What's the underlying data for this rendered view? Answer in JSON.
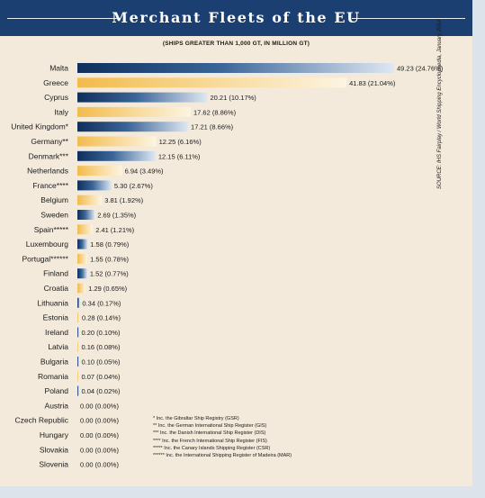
{
  "title": "Merchant Fleets of the EU",
  "subtitle": "(SHIPS GREATER THAN 1,000 GT, IN MILLION GT)",
  "source": "SOURCE: IHS Fairplay / World Shipping Encyclopaedia, January 2014",
  "footnotes": [
    "* Inc. the Gibraltar Ship Registry (GSR)",
    "** Inc. the German International Ship Register (GIS)",
    "*** Inc. the Danish International Ship Register (DIS)",
    "**** Inc. the French International Ship Register (FIS)",
    "***** Inc. the Canary Islands Shipping Register (CSR)",
    "****** Inc. the International Shipping Register of Madeira (MAR)"
  ],
  "colors": {
    "banner": "#1b3f70",
    "background": "#f3eadb",
    "navy_bar": "#143a6b",
    "gold_bar": "#f4c35c"
  },
  "chart_data": {
    "type": "bar",
    "orientation": "horizontal",
    "title": "Merchant Fleets of the EU",
    "subtitle": "(SHIPS GREATER THAN 1,000 GT, IN MILLION GT)",
    "xlim": [
      0,
      49.23
    ],
    "grid": false,
    "categories": [
      "Malta",
      "Greece",
      "Cyprus",
      "Italy",
      "United Kingdom*",
      "Germany**",
      "Denmark***",
      "Netherlands",
      "France****",
      "Belgium",
      "Sweden",
      "Spain*****",
      "Luxembourg",
      "Portugal******",
      "Finland",
      "Croatia",
      "Lithuania",
      "Estonia",
      "Ireland",
      "Latvia",
      "Bulgaria",
      "Romania",
      "Poland",
      "Austria",
      "Czech Republic",
      "Hungary",
      "Slovakia",
      "Slovenia"
    ],
    "values": [
      49.23,
      41.83,
      20.21,
      17.62,
      17.21,
      12.25,
      12.15,
      6.94,
      5.3,
      3.81,
      2.69,
      2.41,
      1.58,
      1.55,
      1.52,
      1.29,
      0.34,
      0.28,
      0.2,
      0.16,
      0.1,
      0.07,
      0.04,
      0.0,
      0.0,
      0.0,
      0.0,
      0.0
    ],
    "value_labels": [
      "49.23 (24.76%)",
      "41.83 (21.04%)",
      "20.21 (10.17%)",
      "17.62 (8.86%)",
      "17.21 (8.66%)",
      "12.25 (6.16%)",
      "12.15 (6.11%)",
      "6.94 (3.49%)",
      "5.30 (2.67%)",
      "3.81 (1.92%)",
      "2.69 (1.35%)",
      "2.41 (1.21%)",
      "1.58 (0.79%)",
      "1.55 (0.78%)",
      "1.52 (0.77%)",
      "1.29 (0.65%)",
      "0.34 (0.17%)",
      "0.28 (0.14%)",
      "0.20 (0.10%)",
      "0.16 (0.08%)",
      "0.10 (0.05%)",
      "0.07 (0.04%)",
      "0.04 (0.02%)",
      "0.00 (0.00%)",
      "0.00 (0.00%)",
      "0.00 (0.00%)",
      "0.00 (0.00%)",
      "0.00 (0.00%)"
    ],
    "bar_colors": [
      "navy",
      "gold",
      "navy",
      "gold",
      "navy",
      "gold",
      "navy",
      "gold",
      "navy",
      "gold",
      "navy",
      "gold",
      "navy",
      "gold",
      "navy",
      "gold",
      "navy",
      "gold",
      "navy",
      "gold",
      "navy",
      "gold",
      "navy",
      "gold",
      "navy",
      "gold",
      "navy",
      "gold"
    ]
  }
}
